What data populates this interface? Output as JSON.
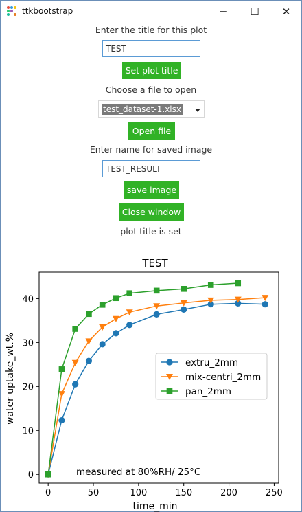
{
  "window": {
    "title": "ttkbootstrap",
    "minimize": "─",
    "maximize": "☐",
    "close": "✕"
  },
  "form": {
    "title_prompt": "Enter the title for this plot",
    "title_value": "TEST",
    "set_title_button": "Set plot title",
    "file_prompt": "Choose a file to open",
    "file_selected": "test_dataset-1.xlsx",
    "open_file_button": "Open file",
    "save_prompt": "Enter name for saved image",
    "save_value": "TEST_RESULT",
    "save_button": "save image",
    "close_button": "Close window",
    "status": "plot title is set"
  },
  "colors": {
    "button": "#31b226",
    "extru_2mm": "#1f77b4",
    "mix_centri_2mm": "#ff7f0e",
    "pan_2mm": "#2ca02c"
  },
  "chart_data": {
    "type": "line",
    "title": "TEST",
    "xlabel": "time_min",
    "ylabel": "water uptake_wt.%",
    "xlim": [
      -10,
      255
    ],
    "ylim": [
      -2,
      46
    ],
    "xticks": [
      0,
      50,
      100,
      150,
      200,
      250
    ],
    "yticks": [
      0,
      10,
      20,
      30,
      40
    ],
    "annotation": "measured at 80%RH/ 25°C",
    "legend_position": "center-right",
    "series": [
      {
        "name": "extru_2mm",
        "marker": "circle",
        "x": [
          0,
          15,
          30,
          45,
          60,
          75,
          90,
          120,
          150,
          180,
          210,
          240
        ],
        "y": [
          0,
          12.3,
          20.5,
          25.8,
          29.6,
          32.1,
          34.0,
          36.4,
          37.5,
          38.7,
          38.9,
          38.7
        ]
      },
      {
        "name": "mix-centri_2mm",
        "marker": "triangle-down",
        "x": [
          0,
          15,
          30,
          45,
          60,
          75,
          90,
          120,
          150,
          180,
          210,
          240
        ],
        "y": [
          0,
          18.3,
          25.4,
          30.3,
          33.5,
          35.4,
          36.9,
          38.3,
          39.0,
          39.6,
          39.8,
          40.2
        ]
      },
      {
        "name": "pan_2mm",
        "marker": "square",
        "x": [
          0,
          15,
          30,
          45,
          60,
          75,
          90,
          120,
          150,
          180,
          210
        ],
        "y": [
          0,
          23.9,
          33.1,
          36.5,
          38.6,
          40.1,
          41.2,
          41.8,
          42.2,
          43.1,
          43.5
        ]
      }
    ]
  }
}
